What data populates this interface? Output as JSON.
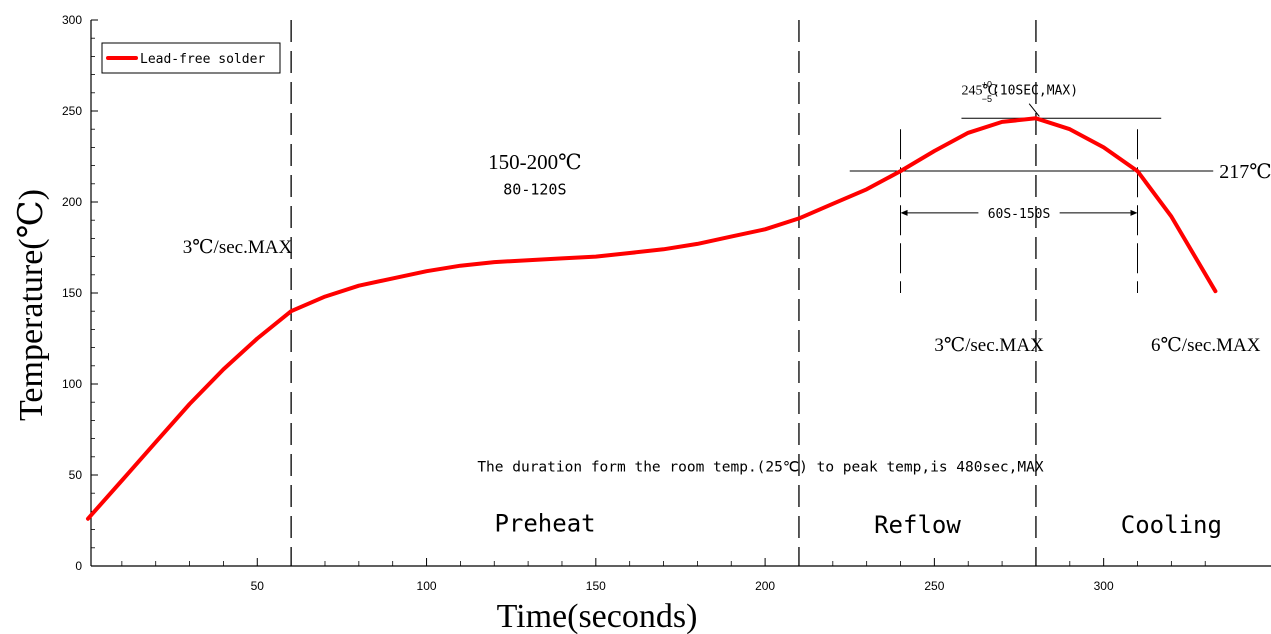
{
  "chart_data": {
    "type": "line",
    "xlabel": "Time(seconds)",
    "ylabel": "Temperature(℃)",
    "xlim": [
      0,
      345
    ],
    "ylim": [
      0,
      300
    ],
    "x_ticks": [
      50,
      100,
      150,
      200,
      250,
      300
    ],
    "y_ticks": [
      0,
      50,
      100,
      150,
      200,
      250,
      300
    ],
    "grid": false,
    "legend": {
      "position": "top-left",
      "label": "Lead-free solder"
    },
    "series": [
      {
        "name": "Lead-free solder",
        "color": "#ff0000",
        "x": [
          0,
          10,
          20,
          30,
          40,
          50,
          60,
          70,
          80,
          90,
          100,
          110,
          120,
          130,
          140,
          150,
          160,
          170,
          180,
          190,
          200,
          210,
          220,
          230,
          240,
          250,
          260,
          270,
          280,
          290,
          300,
          310,
          320,
          333
        ],
        "y": [
          26,
          47,
          68,
          89,
          108,
          125,
          140,
          148,
          154,
          158,
          162,
          165,
          167,
          168,
          169,
          170,
          172,
          174,
          177,
          181,
          185,
          191,
          199,
          207,
          217,
          228,
          238,
          244,
          246,
          240,
          230,
          217,
          192,
          151
        ]
      }
    ],
    "phase_lines_x": [
      60,
      210,
      280
    ],
    "phases": [
      {
        "label": "Preheat",
        "x": 135,
        "y": 19
      },
      {
        "label": "Reflow",
        "x": 245,
        "y": 18
      },
      {
        "label": "Cooling",
        "x": 320,
        "y": 18
      }
    ],
    "threshold": {
      "value": 217,
      "label": "217℃",
      "x_from": 225,
      "x_to": 330
    },
    "peak": {
      "value": 246,
      "line_x_from": 258,
      "line_x_to": 317
    },
    "reflow_window": {
      "x_from": 240,
      "x_to": 310,
      "arrow_y": 194,
      "label": "60S-150S"
    },
    "annotations": [
      {
        "id": "ramp-up",
        "text": "3℃/sec.MAX",
        "x": 28,
        "y": 172
      },
      {
        "id": "soak-temp",
        "text": "150-200℃",
        "x": 132,
        "y": 218
      },
      {
        "id": "soak-time",
        "text": "80-120S",
        "x": 132,
        "y": 204
      },
      {
        "id": "reflow-ramp",
        "text": "3℃/sec.MAX",
        "x": 250,
        "y": 118
      },
      {
        "id": "cooling-rate",
        "text": "6℃/sec.MAX",
        "x": 314,
        "y": 118
      },
      {
        "id": "duration-note",
        "text": "The duration form the room temp.(25℃) to peak temp,is 480sec,MAX",
        "x": 115,
        "y": 52
      },
      {
        "id": "peak-main",
        "text": "245℃",
        "x": 258,
        "y": 259
      },
      {
        "id": "peak-sup",
        "text": "+0",
        "x": 264,
        "y": 263
      },
      {
        "id": "peak-sub",
        "text": "−5",
        "x": 264,
        "y": 255
      },
      {
        "id": "peak-tail",
        "text": "(10SEC,MAX)",
        "x": 267,
        "y": 259
      }
    ]
  }
}
